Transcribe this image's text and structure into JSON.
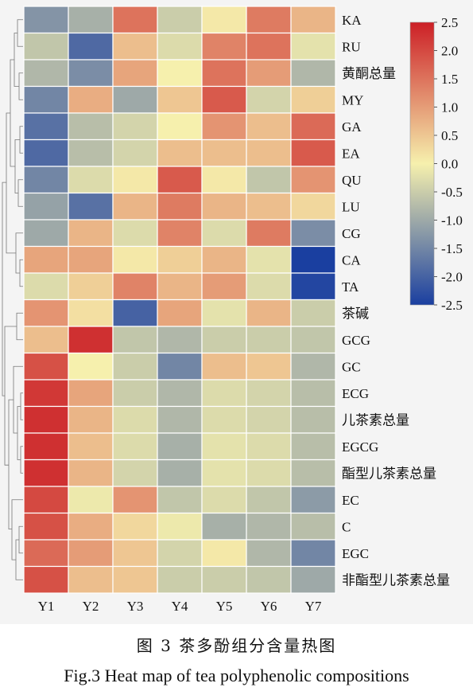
{
  "caption": {
    "cn": "图 3 茶多酚组分含量热图",
    "en": "Fig.3 Heat map of tea polyphenolic compositions"
  },
  "chart_data": {
    "type": "heatmap",
    "columns": [
      "Y1",
      "Y2",
      "Y3",
      "Y4",
      "Y5",
      "Y6",
      "Y7"
    ],
    "rows": [
      "KA",
      "RU",
      "黄酮总量",
      "MY",
      "GA",
      "EA",
      "QU",
      "LU",
      "CG",
      "CA",
      "TA",
      "茶碱",
      "GCG",
      "GC",
      "ECG",
      "儿茶素总量",
      "EGCG",
      "酯型儿茶素总量",
      "EC",
      "C",
      "EGC",
      "非酯型儿茶素总量"
    ],
    "values": [
      [
        -1.3,
        -0.9,
        1.5,
        -0.5,
        0.1,
        1.4,
        0.7
      ],
      [
        -0.6,
        -1.9,
        0.6,
        -0.3,
        1.3,
        1.5,
        -0.2
      ],
      [
        -0.8,
        -1.4,
        0.9,
        0.0,
        1.5,
        1.0,
        -0.8
      ],
      [
        -1.5,
        0.8,
        -1.0,
        0.5,
        1.8,
        -0.4,
        0.4
      ],
      [
        -1.8,
        -0.7,
        -0.4,
        0.0,
        1.1,
        0.6,
        1.6
      ],
      [
        -1.9,
        -0.7,
        -0.4,
        0.6,
        0.6,
        0.6,
        1.8
      ],
      [
        -1.5,
        -0.3,
        0.1,
        1.8,
        0.1,
        -0.6,
        1.1
      ],
      [
        -1.1,
        -1.8,
        0.7,
        1.4,
        0.7,
        0.6,
        0.3
      ],
      [
        -1.0,
        0.7,
        -0.3,
        1.3,
        -0.3,
        1.4,
        -1.4
      ],
      [
        0.9,
        0.9,
        0.1,
        0.4,
        0.7,
        -0.2,
        -2.5
      ],
      [
        -0.3,
        0.4,
        1.3,
        0.7,
        1.0,
        -0.3,
        -2.4
      ],
      [
        1.1,
        0.2,
        -2.0,
        0.9,
        -0.2,
        0.7,
        -0.5
      ],
      [
        0.6,
        2.3,
        -0.6,
        -0.8,
        -0.5,
        -0.5,
        -0.6
      ],
      [
        1.9,
        0.0,
        -0.5,
        -1.5,
        0.6,
        0.5,
        -0.8
      ],
      [
        2.2,
        0.9,
        -0.5,
        -0.8,
        -0.3,
        -0.4,
        -0.7
      ],
      [
        2.3,
        0.7,
        -0.3,
        -0.8,
        -0.3,
        -0.4,
        -0.7
      ],
      [
        2.3,
        0.6,
        -0.3,
        -0.9,
        -0.2,
        -0.3,
        -0.7
      ],
      [
        2.3,
        0.7,
        -0.4,
        -0.9,
        -0.2,
        -0.3,
        -0.7
      ],
      [
        2.0,
        -0.1,
        1.1,
        -0.6,
        -0.3,
        -0.6,
        -1.2
      ],
      [
        1.9,
        0.8,
        0.3,
        -0.1,
        -0.9,
        -0.8,
        -0.7
      ],
      [
        1.6,
        1.0,
        0.5,
        -0.4,
        0.1,
        -0.8,
        -1.5
      ],
      [
        1.9,
        0.6,
        0.5,
        -0.5,
        -0.5,
        -0.6,
        -1.0
      ]
    ],
    "colorbar": {
      "min": -2.5,
      "max": 2.5,
      "ticks": [
        "2.5",
        "2.0",
        "1.5",
        "1.0",
        "0.5",
        "0.0",
        "-0.5",
        "-1.0",
        "-1.5",
        "-2.0",
        "-2.5"
      ],
      "colors": [
        "#1a3fa0",
        "#f6f0ad",
        "#cc1f26"
      ]
    },
    "title": "",
    "xlabel": "",
    "ylabel": ""
  }
}
